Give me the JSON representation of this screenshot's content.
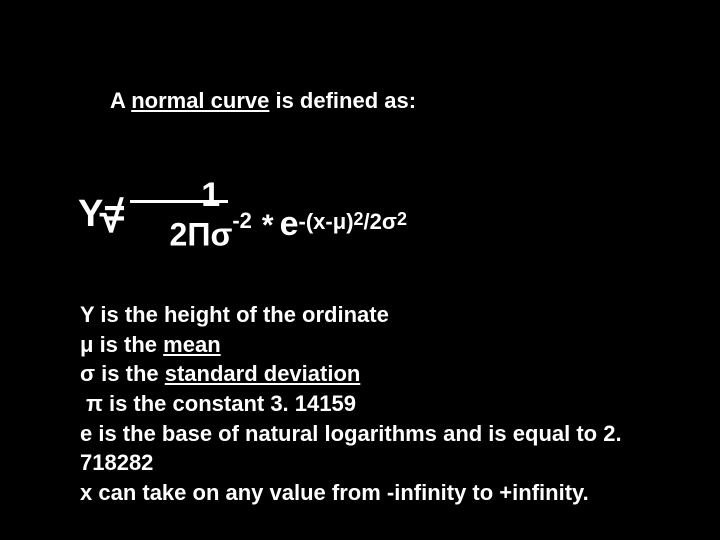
{
  "colors": {
    "background": "#000000",
    "text": "#ffffff"
  },
  "typography": {
    "font_family": "Arial, sans-serif",
    "base_fontsize_pt": 22,
    "weight": "bold"
  },
  "title": {
    "prefix": "A ",
    "underlined": "normal curve",
    "suffix": " is defined as:"
  },
  "formula": {
    "Yeq": "Y=",
    "numerator": "1",
    "denominator_base": "2Πσ",
    "denominator_exp": "-2",
    "star": "*",
    "e": "e",
    "exp_part1": "-(x-μ)",
    "exp_sup1": "2",
    "exp_part2": "/2σ",
    "exp_sup2": "2"
  },
  "definitions": {
    "y": "Y is the height of the ordinate",
    "mu_pre": "μ is the ",
    "mu_link": "mean",
    "sigma_pre": "σ is the ",
    "sigma_link": "standard deviation",
    "pi": " π is the constant 3. 14159",
    "e": "e is the base of natural logarithms and is equal to 2. 718282",
    "x": "x can take on any value from -infinity to +infinity."
  }
}
